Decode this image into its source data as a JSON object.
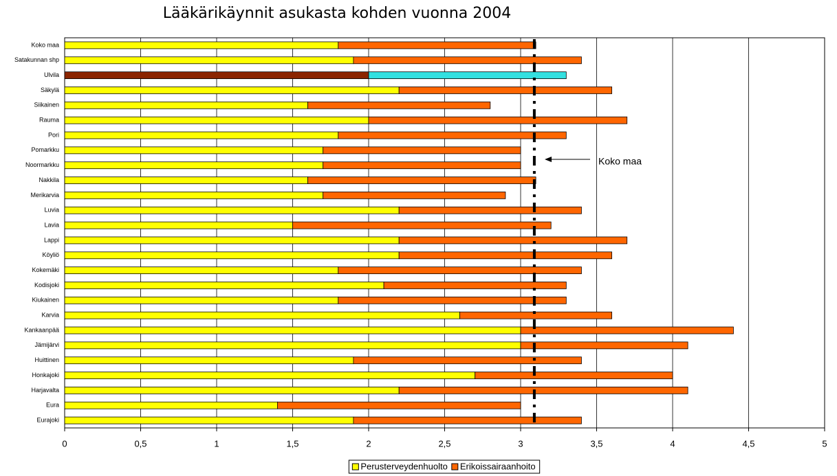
{
  "chart_data": {
    "type": "stacked_bar_horizontal",
    "title": "Lääkärikäynnit asukasta kohden vuonna 2004",
    "categories": [
      "Koko maa",
      "Satakunnan shp",
      "Ulvila",
      "Säkylä",
      "Siikainen",
      "Rauma",
      "Pori",
      "Pomarkku",
      "Noormarkku",
      "Nakkila",
      "Merikarvia",
      "Luvia",
      "Lavia",
      "Lappi",
      "Köyliö",
      "Kokemäki",
      "Kodisjoki",
      "Kiukainen",
      "Karvia",
      "Kankaanpää",
      "Jämijärvi",
      "Huittinen",
      "Honkajoki",
      "Harjavalta",
      "Eura",
      "Eurajoki"
    ],
    "series": [
      {
        "name": "Perusterveydenhuolto",
        "color": "#ffff00",
        "highlight_color": "#8b2500",
        "values": [
          1.8,
          1.9,
          2.0,
          2.2,
          1.6,
          2.0,
          1.8,
          1.7,
          1.7,
          1.6,
          1.7,
          2.2,
          1.5,
          2.2,
          2.2,
          1.8,
          2.1,
          1.8,
          2.6,
          3.0,
          3.0,
          1.9,
          2.7,
          2.2,
          1.4,
          1.9
        ]
      },
      {
        "name": "Erikoissairaanhoito",
        "color": "#ff6600",
        "highlight_color": "#33e0e0",
        "values": [
          1.3,
          1.5,
          1.3,
          1.4,
          1.2,
          1.7,
          1.5,
          1.3,
          1.3,
          1.5,
          1.2,
          1.2,
          1.7,
          1.5,
          1.4,
          1.6,
          1.2,
          1.5,
          1.0,
          1.4,
          1.1,
          1.5,
          1.3,
          1.9,
          1.6,
          1.5
        ]
      }
    ],
    "highlight_index": 2,
    "xlim": [
      0,
      5
    ],
    "xticks": [
      0,
      {
        "value": 0.5,
        "label": "0,5"
      },
      1,
      {
        "value": 1.5,
        "label": "1,5"
      },
      2,
      {
        "value": 2.5,
        "label": "2,5"
      },
      3,
      {
        "value": 3.5,
        "label": "3,5"
      },
      4,
      {
        "value": 4.5,
        "label": "4,5"
      },
      5
    ],
    "grid": true,
    "reference_line": {
      "value": 3.09,
      "label": "Koko maa"
    },
    "legend": "bottom"
  }
}
